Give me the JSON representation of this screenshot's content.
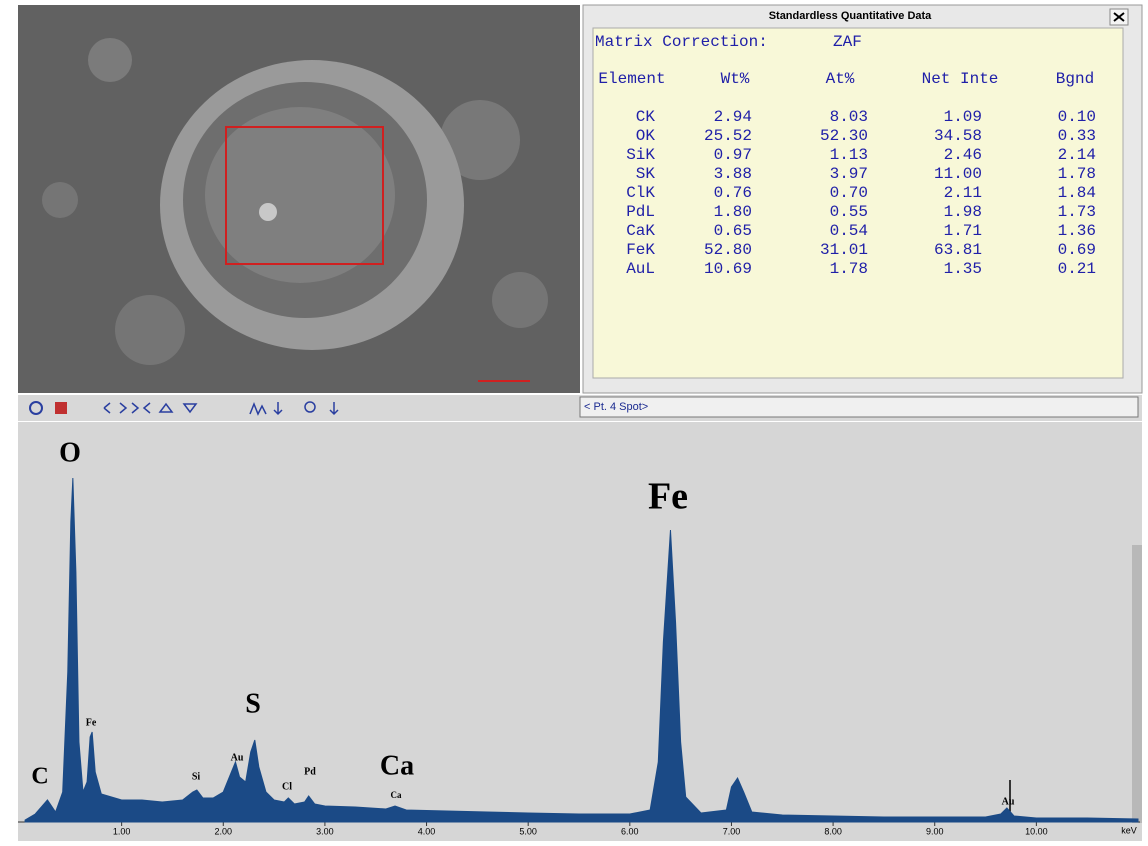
{
  "panel": {
    "title": "Standardless Quantitative Data",
    "matrix_label": "Matrix Correction:",
    "matrix_value": "ZAF",
    "columns": [
      "Element",
      "Wt%",
      "At%",
      "Net Inte",
      "Bgnd"
    ],
    "rows": [
      [
        "CK",
        "2.94",
        "8.03",
        "1.09",
        "0.10"
      ],
      [
        "OK",
        "25.52",
        "52.30",
        "34.58",
        "0.33"
      ],
      [
        "SiK",
        "0.97",
        "1.13",
        "2.46",
        "2.14"
      ],
      [
        "SK",
        "3.88",
        "3.97",
        "11.00",
        "1.78"
      ],
      [
        "ClK",
        "0.76",
        "0.70",
        "2.11",
        "1.84"
      ],
      [
        "PdL",
        "1.80",
        "0.55",
        "1.98",
        "1.73"
      ],
      [
        "CaK",
        "0.65",
        "0.54",
        "1.71",
        "1.36"
      ],
      [
        "FeK",
        "52.80",
        "31.01",
        "63.81",
        "0.69"
      ],
      [
        "AuL",
        "10.69",
        "1.78",
        "1.35",
        "0.21"
      ]
    ]
  },
  "status": "< Pt. 4 Spot>",
  "chart_data": {
    "type": "area",
    "color": "#1b4a86",
    "xlabel": "keV",
    "x": [
      0.05,
      0.15,
      0.27,
      0.35,
      0.42,
      0.47,
      0.5,
      0.52,
      0.55,
      0.58,
      0.62,
      0.66,
      0.69,
      0.71,
      0.74,
      0.8,
      0.9,
      1.0,
      1.2,
      1.4,
      1.6,
      1.7,
      1.74,
      1.8,
      1.9,
      2.0,
      2.08,
      2.12,
      2.16,
      2.22,
      2.27,
      2.31,
      2.35,
      2.42,
      2.5,
      2.6,
      2.64,
      2.7,
      2.8,
      2.84,
      2.9,
      3.0,
      3.3,
      3.6,
      3.69,
      3.8,
      4.2,
      4.6,
      5.0,
      5.5,
      6.0,
      6.2,
      6.28,
      6.33,
      6.4,
      6.45,
      6.5,
      6.55,
      6.7,
      6.95,
      7.0,
      7.06,
      7.12,
      7.2,
      7.5,
      8.0,
      8.5,
      9.0,
      9.5,
      9.65,
      9.71,
      9.78,
      10.0,
      10.5,
      11.0
    ],
    "values": [
      2,
      8,
      22,
      10,
      30,
      150,
      300,
      344,
      250,
      80,
      30,
      40,
      85,
      90,
      50,
      28,
      25,
      22,
      22,
      20,
      22,
      30,
      32,
      24,
      24,
      30,
      50,
      60,
      45,
      40,
      70,
      82,
      55,
      30,
      22,
      20,
      24,
      18,
      20,
      26,
      18,
      16,
      15,
      13,
      16,
      12,
      11,
      10,
      9,
      8,
      8,
      12,
      60,
      180,
      292,
      200,
      80,
      25,
      9,
      12,
      35,
      44,
      30,
      10,
      7,
      6,
      5,
      5,
      5,
      8,
      14,
      6,
      4,
      4,
      3
    ],
    "xlim": [
      0,
      11
    ],
    "ylim": [
      0,
      400
    ],
    "xticks": [
      {
        "value": 1,
        "label": "1.00"
      },
      {
        "value": 2,
        "label": "2.00"
      },
      {
        "value": 3,
        "label": "3.00"
      },
      {
        "value": 4,
        "label": "4.00"
      },
      {
        "value": 5,
        "label": "5.00"
      },
      {
        "value": 6,
        "label": "6.00"
      },
      {
        "value": 7,
        "label": "7.00"
      },
      {
        "value": 8,
        "label": "8.00"
      },
      {
        "value": 9,
        "label": "9.00"
      },
      {
        "value": 10,
        "label": "10.00"
      }
    ],
    "peak_labels": [
      "O",
      "Fe",
      "C",
      "Si",
      "Au",
      "S",
      "Cl",
      "Pd",
      "Ca",
      "Ca",
      "Fe",
      "Au"
    ]
  }
}
